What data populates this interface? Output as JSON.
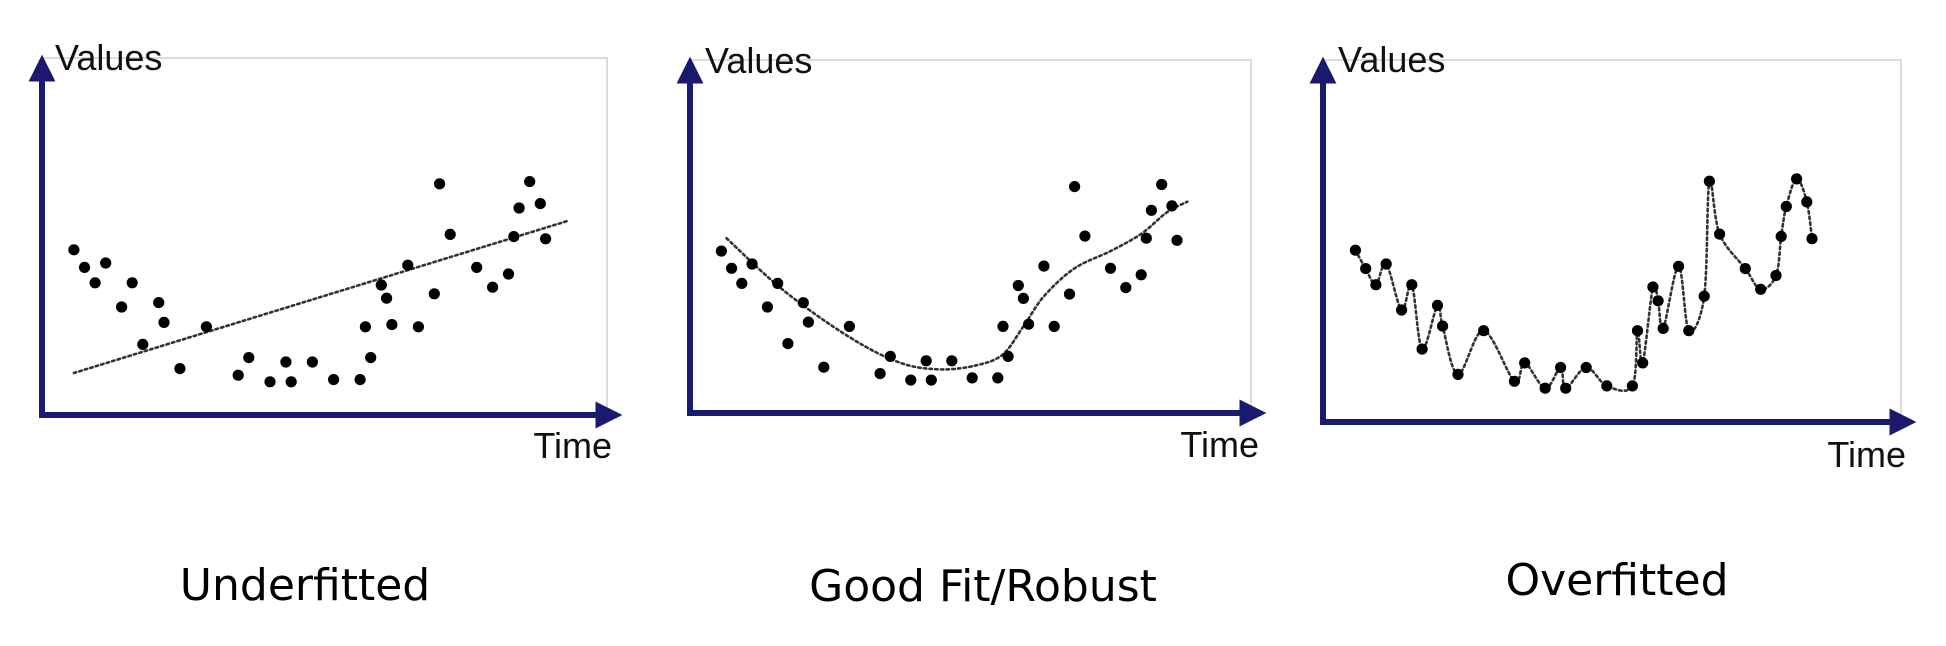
{
  "colors": {
    "axis": "#1a1a6e",
    "frame": "#d0d0d0",
    "point": "#000000",
    "curve": "#333333"
  },
  "chart_data": [
    {
      "type": "scatter",
      "title": "Underfitted",
      "xlabel": "Time",
      "ylabel": "Values",
      "xlim": [
        0,
        100
      ],
      "ylim": [
        0,
        100
      ],
      "grid": false,
      "points": [
        [
          3,
          66
        ],
        [
          5,
          58
        ],
        [
          7,
          51
        ],
        [
          9,
          60
        ],
        [
          12,
          40
        ],
        [
          14,
          51
        ],
        [
          16,
          23
        ],
        [
          19,
          42
        ],
        [
          20,
          33
        ],
        [
          23,
          12
        ],
        [
          28,
          31
        ],
        [
          34,
          9
        ],
        [
          36,
          17
        ],
        [
          40,
          6
        ],
        [
          43,
          15
        ],
        [
          44,
          6
        ],
        [
          48,
          15
        ],
        [
          52,
          7
        ],
        [
          57,
          7
        ],
        [
          58,
          31
        ],
        [
          59,
          17
        ],
        [
          61,
          50
        ],
        [
          62,
          44
        ],
        [
          63,
          32
        ],
        [
          66,
          59
        ],
        [
          68,
          31
        ],
        [
          71,
          46
        ],
        [
          72,
          96
        ],
        [
          74,
          73
        ],
        [
          79,
          58
        ],
        [
          82,
          49
        ],
        [
          85,
          55
        ],
        [
          86,
          72
        ],
        [
          87,
          85
        ],
        [
          89,
          97
        ],
        [
          91,
          87
        ],
        [
          92,
          71
        ]
      ],
      "fit": {
        "kind": "linear",
        "line_style": "dotted",
        "curve": [
          [
            3,
            10
          ],
          [
            96,
            79
          ]
        ]
      }
    },
    {
      "type": "scatter",
      "title": "Good Fit/Robust",
      "xlabel": "Time",
      "ylabel": "Values",
      "xlim": [
        0,
        100
      ],
      "ylim": [
        0,
        100
      ],
      "grid": false,
      "points": [
        [
          3,
          66
        ],
        [
          5,
          58
        ],
        [
          7,
          51
        ],
        [
          9,
          60
        ],
        [
          12,
          40
        ],
        [
          14,
          51
        ],
        [
          16,
          23
        ],
        [
          19,
          42
        ],
        [
          20,
          33
        ],
        [
          23,
          12
        ],
        [
          28,
          31
        ],
        [
          34,
          9
        ],
        [
          36,
          17
        ],
        [
          40,
          6
        ],
        [
          43,
          15
        ],
        [
          44,
          6
        ],
        [
          48,
          15
        ],
        [
          52,
          7
        ],
        [
          57,
          7
        ],
        [
          58,
          31
        ],
        [
          59,
          17
        ],
        [
          61,
          50
        ],
        [
          62,
          44
        ],
        [
          63,
          32
        ],
        [
          66,
          59
        ],
        [
          68,
          31
        ],
        [
          71,
          46
        ],
        [
          72,
          96
        ],
        [
          74,
          73
        ],
        [
          79,
          58
        ],
        [
          82,
          49
        ],
        [
          85,
          55
        ],
        [
          86,
          72
        ],
        [
          87,
          85
        ],
        [
          89,
          97
        ],
        [
          91,
          87
        ],
        [
          92,
          71
        ]
      ],
      "fit": {
        "kind": "smooth",
        "line_style": "dotted",
        "curve": [
          [
            4,
            72
          ],
          [
            15,
            48
          ],
          [
            28,
            26
          ],
          [
            38,
            14
          ],
          [
            46,
            11
          ],
          [
            53,
            13
          ],
          [
            58,
            18
          ],
          [
            62,
            31
          ],
          [
            66,
            45
          ],
          [
            72,
            58
          ],
          [
            79,
            66
          ],
          [
            85,
            74
          ],
          [
            90,
            84
          ],
          [
            94,
            89
          ]
        ]
      }
    },
    {
      "type": "scatter",
      "title": "Overfitted",
      "xlabel": "Time",
      "ylabel": "Values",
      "xlim": [
        0,
        100
      ],
      "ylim": [
        0,
        100
      ],
      "grid": false,
      "points": [
        [
          3,
          66
        ],
        [
          5,
          58
        ],
        [
          7,
          51
        ],
        [
          9,
          60
        ],
        [
          12,
          40
        ],
        [
          14,
          51
        ],
        [
          16,
          23
        ],
        [
          19,
          42
        ],
        [
          20,
          33
        ],
        [
          23,
          12
        ],
        [
          28,
          31
        ],
        [
          34,
          9
        ],
        [
          36,
          17
        ],
        [
          40,
          6
        ],
        [
          43,
          15
        ],
        [
          44,
          6
        ],
        [
          48,
          15
        ],
        [
          52,
          7
        ],
        [
          57,
          7
        ],
        [
          58,
          31
        ],
        [
          59,
          17
        ],
        [
          61,
          50
        ],
        [
          62,
          44
        ],
        [
          63,
          32
        ],
        [
          66,
          59
        ],
        [
          68,
          31
        ],
        [
          71,
          46
        ],
        [
          72,
          96
        ],
        [
          74,
          73
        ],
        [
          79,
          58
        ],
        [
          82,
          49
        ],
        [
          85,
          55
        ],
        [
          86,
          72
        ],
        [
          87,
          85
        ],
        [
          89,
          97
        ],
        [
          91,
          87
        ],
        [
          92,
          71
        ]
      ],
      "fit": {
        "kind": "interpolating",
        "line_style": "dotted"
      }
    }
  ]
}
